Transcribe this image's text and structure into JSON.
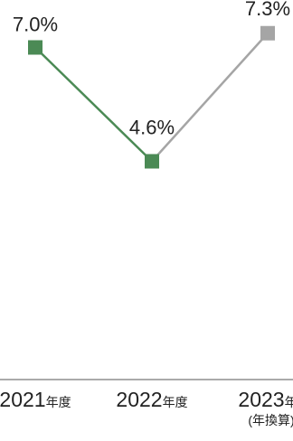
{
  "chart_data": {
    "type": "line",
    "categories": [
      {
        "year": "2021",
        "suffix": "年度",
        "note": ""
      },
      {
        "year": "2022",
        "suffix": "年度",
        "note": ""
      },
      {
        "year": "2023",
        "suffix": "年",
        "note": "(年換算)"
      }
    ],
    "values": [
      7.0,
      4.6,
      7.3
    ],
    "data_labels": [
      "7.0%",
      "4.6%",
      "7.3%"
    ],
    "segment_colors": [
      "#4b8a55",
      "#a5a5a5"
    ],
    "point_colors": [
      "#4b8a55",
      "#4b8a55",
      "#a5a5a5"
    ],
    "axis_color": "#555555",
    "ylim": [
      0,
      8
    ],
    "grid": false,
    "legend": "none",
    "title": "",
    "xlabel": "",
    "ylabel": ""
  }
}
